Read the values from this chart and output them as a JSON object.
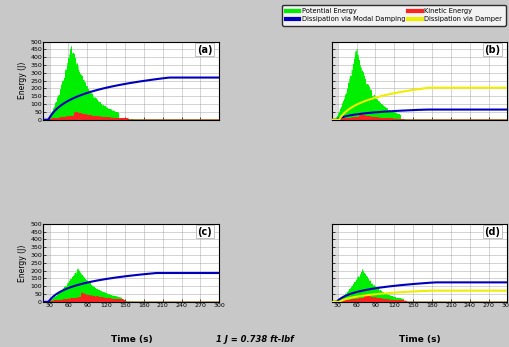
{
  "background_color": "#c8c8c8",
  "plot_bg_color": "#ffffff",
  "grid_color": "#999999",
  "xlim": [
    20,
    300
  ],
  "ylim": [
    0,
    500
  ],
  "xticks": [
    30,
    60,
    90,
    120,
    150,
    180,
    210,
    240,
    270,
    300
  ],
  "yticks": [
    0,
    50,
    100,
    150,
    200,
    250,
    300,
    350,
    400,
    450,
    500
  ],
  "xlabel": "Time (s)",
  "ylabel": "Energy (J)",
  "subtitle": "1 J = 0.738 ft-lbf",
  "colors": {
    "potential": "#00ee00",
    "kinetic": "#ff2020",
    "modal": "#0000bb",
    "damper": "#eeee00"
  },
  "panel_labels": [
    "(a)",
    "(b)",
    "(c)",
    "(d)"
  ]
}
